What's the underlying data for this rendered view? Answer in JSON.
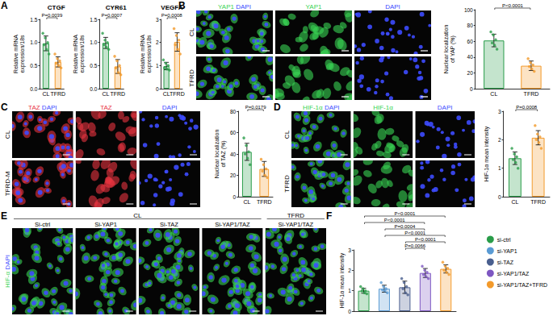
{
  "panel_letters": [
    "A",
    "B",
    "C",
    "D",
    "E",
    "F"
  ],
  "chart_data": [
    {
      "type": "bar",
      "title": "CTGF",
      "categories": [
        "CL",
        "TFRD"
      ],
      "values": [
        0.98,
        0.58
      ],
      "errors": [
        0.16,
        0.11
      ],
      "points": [
        [
          1.2,
          1.1,
          1.0,
          0.95,
          0.85,
          0.75
        ],
        [
          0.75,
          0.65,
          0.6,
          0.55,
          0.5,
          0.45
        ]
      ],
      "colors": [
        "#2a9d4a",
        "#f39a2b"
      ],
      "ylabel": "Relative mRNA\nexpression/18s",
      "ylim": [
        0,
        1.5
      ],
      "yticks": [
        {
          "value": 0,
          "label": "0.0"
        },
        {
          "value": 0.5,
          "label": "0.5"
        },
        {
          "value": 1,
          "label": "1.0"
        },
        {
          "value": 1.5,
          "label": "1.5"
        }
      ],
      "annotations": [
        {
          "text": "P=0.0039",
          "between": [
            "CL",
            "TFRD"
          ]
        }
      ]
    },
    {
      "type": "bar",
      "title": "CYR61",
      "categories": [
        "CL",
        "TFRD"
      ],
      "values": [
        0.99,
        0.48
      ],
      "errors": [
        0.12,
        0.15
      ],
      "points": [
        [
          1.2,
          1.05,
          1.0,
          0.95,
          0.9,
          0.85
        ],
        [
          0.7,
          0.6,
          0.5,
          0.45,
          0.35,
          0.3
        ]
      ],
      "colors": [
        "#2a9d4a",
        "#f39a2b"
      ],
      "ylabel": "Relative mRNA\nexpression/18s",
      "ylim": [
        0,
        1.5
      ],
      "yticks": [
        {
          "value": 0,
          "label": "0.0"
        },
        {
          "value": 0.5,
          "label": "0.5"
        },
        {
          "value": 1,
          "label": "1.0"
        },
        {
          "value": 1.5,
          "label": "1.5"
        }
      ],
      "annotations": [
        {
          "text": "P=0.0007",
          "between": [
            "CL",
            "TFRD"
          ]
        }
      ]
    },
    {
      "type": "bar",
      "title": "VEGFA",
      "categories": [
        "CL",
        "TFRD"
      ],
      "values": [
        0.98,
        2.02
      ],
      "errors": [
        0.16,
        0.4
      ],
      "points": [
        [
          1.25,
          1.1,
          1.0,
          0.9,
          0.85,
          0.8
        ],
        [
          2.6,
          2.3,
          2.1,
          1.9,
          1.7,
          1.5
        ]
      ],
      "colors": [
        "#2a9d4a",
        "#f39a2b"
      ],
      "ylabel": "Relative mRNA\nexpression/18s",
      "ylim": [
        0,
        3
      ],
      "yticks": [
        0,
        1,
        2,
        3
      ],
      "annotations": [
        {
          "text": "P=0.0008",
          "between": [
            "CL",
            "TFRD"
          ]
        }
      ]
    },
    {
      "type": "bar",
      "categories": [
        "CL",
        "TFRD"
      ],
      "values": [
        61,
        29
      ],
      "errors": [
        8,
        6
      ],
      "points": [
        [
          72,
          68,
          62,
          58,
          55,
          50
        ],
        [
          38,
          33,
          30,
          28,
          25,
          22
        ]
      ],
      "colors": [
        "#2a9d4a",
        "#f39a2b"
      ],
      "ylabel": "Nuclear localization\nof YAP (%)",
      "ylim": [
        0,
        100
      ],
      "yticks": [
        0,
        20,
        40,
        60,
        80,
        100
      ],
      "annotations": [
        {
          "text": "P<0.0001",
          "between": [
            "CL",
            "TFRD"
          ]
        }
      ]
    },
    {
      "type": "bar",
      "categories": [
        "CL",
        "TFRD"
      ],
      "values": [
        42,
        26
      ],
      "errors": [
        8,
        7
      ],
      "points": [
        [
          55,
          48,
          42,
          40,
          36,
          30
        ],
        [
          35,
          30,
          26,
          24,
          20,
          18
        ]
      ],
      "colors": [
        "#2a9d4a",
        "#f39a2b"
      ],
      "ylabel": "Nuclear localization\nof TAZ (%)",
      "ylim": [
        0,
        80
      ],
      "yticks": [
        0,
        20,
        40,
        60,
        80
      ],
      "annotations": [
        {
          "text": "P=0.0179",
          "between": [
            "CL",
            "TFRD"
          ]
        }
      ]
    },
    {
      "type": "bar",
      "categories": [
        "CL",
        "TFRD"
      ],
      "values": [
        1.35,
        2.07
      ],
      "errors": [
        0.22,
        0.25
      ],
      "points": [
        [
          1.7,
          1.5,
          1.4,
          1.3,
          1.2,
          1.0
        ],
        [
          2.5,
          2.2,
          2.1,
          2.0,
          1.9,
          1.7
        ]
      ],
      "colors": [
        "#2a9d4a",
        "#f39a2b"
      ],
      "ylabel": "HIF-1α mean intensity",
      "ylim": [
        0,
        3
      ],
      "yticks": [
        0,
        1,
        2,
        3
      ],
      "annotations": [
        {
          "text": "P=0.0008",
          "between": [
            "CL",
            "TFRD"
          ]
        }
      ]
    },
    {
      "type": "bar",
      "categories": [
        "si-ctrl",
        "si-YAP1",
        "si-TAZ",
        "si-YAP1/TAZ",
        "si-YAP1/TAZ+TFRD"
      ],
      "values": [
        1.0,
        1.1,
        1.17,
        1.87,
        2.07
      ],
      "errors": [
        0.12,
        0.17,
        0.3,
        0.22,
        0.2
      ],
      "points": [
        [
          1.2,
          1.1,
          1.0,
          1.0,
          0.9,
          0.85
        ],
        [
          1.4,
          1.2,
          1.1,
          1.05,
          1.0,
          0.9
        ],
        [
          1.6,
          1.4,
          1.2,
          1.1,
          0.9,
          0.8
        ],
        [
          2.2,
          2.0,
          1.9,
          1.8,
          1.7,
          1.6
        ],
        [
          2.4,
          2.2,
          2.1,
          2.0,
          1.9,
          1.8
        ]
      ],
      "colors": [
        "#2a9d4a",
        "#5a9bd4",
        "#4a5f8f",
        "#7e57c2",
        "#f39a2b"
      ],
      "ylabel": "HIF-1α mean intensity",
      "ylim": [
        0,
        3
      ],
      "yticks": [
        0,
        1,
        2,
        3
      ],
      "tick_labels": "y",
      "legend": "right",
      "annotations": [
        {
          "text": "P<0.0001",
          "between": [
            "si-ctrl",
            "si-YAP1/TAZ+TFRD"
          ]
        },
        {
          "text": "P<0.0001",
          "between": [
            "si-ctrl",
            "si-YAP1/TAZ"
          ]
        },
        {
          "text": "P=0.0004",
          "between": [
            "si-YAP1",
            "si-YAP1/TAZ"
          ]
        },
        {
          "text": "P<0.0001",
          "between": [
            "si-YAP1",
            "si-YAP1/TAZ+TFRD"
          ]
        },
        {
          "text": "P<0.0001",
          "between": [
            "si-TAZ",
            "si-YAP1/TAZ+TFRD"
          ]
        },
        {
          "text": "P=0.0066",
          "between": [
            "si-TAZ",
            "si-YAP1/TAZ"
          ]
        }
      ]
    }
  ],
  "micrographs": [
    {
      "columns": [
        [
          {
            "text": "YAP1",
            "color": "#39d353"
          },
          {
            "text": "DAPI",
            "color": "#3d4bff"
          }
        ],
        [
          {
            "text": "YAP1",
            "color": "#39d353"
          }
        ],
        [
          {
            "text": "DAPI",
            "color": "#3d4bff"
          }
        ]
      ],
      "rows": [
        "CL",
        "TFRD"
      ]
    },
    {
      "columns": [
        [
          {
            "text": "TAZ",
            "color": "#e8333f"
          },
          {
            "text": "DAPI",
            "color": "#3d4bff"
          }
        ],
        [
          {
            "text": "TAZ",
            "color": "#e8333f"
          }
        ],
        [
          {
            "text": "DAPI",
            "color": "#3d4bff"
          }
        ]
      ],
      "rows": [
        "CL",
        "TFRD-M"
      ]
    },
    {
      "columns": [
        [
          {
            "text": "HIF-1α",
            "color": "#39d353"
          },
          {
            "text": "DAPI",
            "color": "#3d4bff"
          }
        ],
        [
          {
            "text": "HIF-1α",
            "color": "#39d353"
          }
        ],
        [
          {
            "text": "DAPI",
            "color": "#3d4bff"
          }
        ]
      ],
      "rows": [
        "CL",
        "TFRD"
      ]
    },
    {
      "groups": [
        {
          "label": "CL",
          "columns": [
            "Si-ctrl",
            "Si-YAP1",
            "Si-TAZ",
            "Si-YAP1/TAZ"
          ]
        },
        {
          "label": "TFRD",
          "columns": [
            "Si-YAP1/TAZ"
          ]
        }
      ],
      "channels": [
        {
          "text": "HIF-α",
          "color": "#39d353"
        },
        {
          "text": "DAPI",
          "color": "#3d4bff"
        }
      ]
    }
  ]
}
